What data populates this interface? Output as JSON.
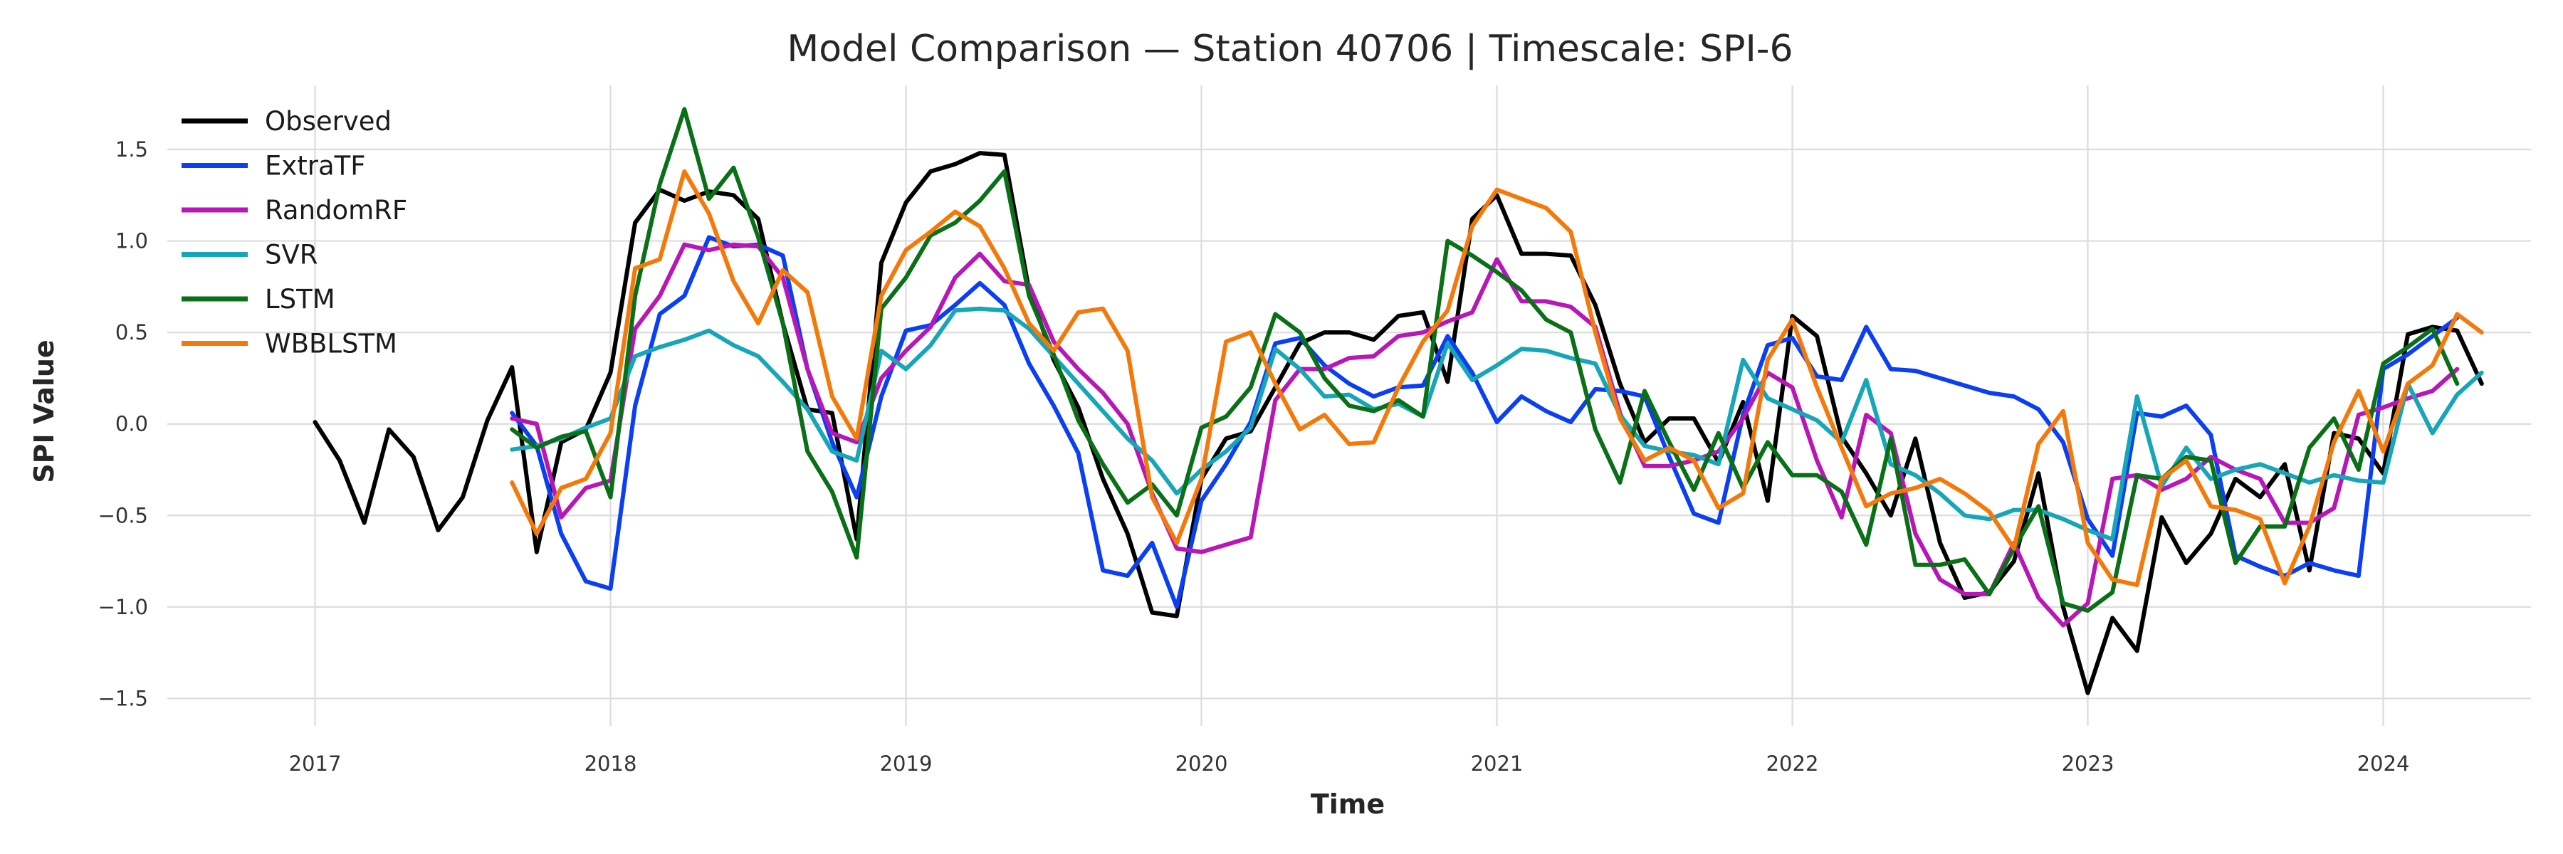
{
  "chart_data": {
    "type": "line",
    "title": "Model Comparison — Station 40706 | Timescale: SPI-6",
    "xlabel": "Time",
    "ylabel": "SPI Value",
    "x_start": "2017-01",
    "xlim": [
      "2016-07",
      "2024-07"
    ],
    "ylim": [
      -1.65,
      1.85
    ],
    "x_ticks": [
      "2017",
      "2018",
      "2019",
      "2020",
      "2021",
      "2022",
      "2023",
      "2024"
    ],
    "y_ticks": [
      -1.5,
      -1.0,
      -0.5,
      0.0,
      0.5,
      1.0,
      1.5
    ],
    "y_tick_labels": [
      "−1.5",
      "−1.0",
      "−0.5",
      "0.0",
      "0.5",
      "1.0",
      "1.5"
    ],
    "grid": true,
    "legend_position": "top-left",
    "series": [
      {
        "name": "Observed",
        "color": "#000000",
        "start": "2017-01",
        "values": [
          0.01,
          -0.2,
          -0.54,
          -0.03,
          -0.18,
          -0.58,
          -0.4,
          0.02,
          0.31,
          -0.7,
          -0.1,
          -0.03,
          0.28,
          1.1,
          1.28,
          1.22,
          1.27,
          1.25,
          1.12,
          0.55,
          0.08,
          0.06,
          -0.63,
          0.88,
          1.21,
          1.38,
          1.42,
          1.48,
          1.47,
          0.73,
          0.35,
          0.09,
          -0.3,
          -0.6,
          -1.03,
          -1.05,
          -0.3,
          -0.08,
          -0.04,
          0.2,
          0.44,
          0.5,
          0.5,
          0.46,
          0.59,
          0.61,
          0.23,
          1.12,
          1.25,
          0.93,
          0.93,
          0.92,
          0.65,
          0.22,
          -0.1,
          0.03,
          0.03,
          -0.21,
          0.12,
          -0.42,
          0.59,
          0.48,
          -0.07,
          -0.27,
          -0.5,
          -0.08,
          -0.65,
          -0.95,
          -0.92,
          -0.75,
          -0.27,
          -1.0,
          -1.47,
          -1.06,
          -1.24,
          -0.51,
          -0.76,
          -0.6,
          -0.3,
          -0.4,
          -0.22,
          -0.8,
          -0.05,
          -0.08,
          -0.27,
          0.49,
          0.53,
          0.51,
          0.22
        ]
      },
      {
        "name": "ExtraTF",
        "color": "#0a3ff2",
        "start": "2017-09",
        "values": [
          0.06,
          -0.12,
          -0.6,
          -0.86,
          -0.9,
          0.1,
          0.6,
          0.7,
          1.02,
          0.97,
          0.98,
          0.92,
          0.3,
          -0.1,
          -0.4,
          0.15,
          0.51,
          0.54,
          0.65,
          0.77,
          0.65,
          0.33,
          0.1,
          -0.16,
          -0.8,
          -0.83,
          -0.65,
          -1.0,
          -0.42,
          -0.22,
          0.01,
          0.44,
          0.47,
          0.32,
          0.22,
          0.15,
          0.2,
          0.21,
          0.48,
          0.28,
          0.01,
          0.15,
          0.07,
          0.01,
          0.19,
          0.18,
          0.15,
          -0.18,
          -0.49,
          -0.54,
          0.05,
          0.43,
          0.47,
          0.26,
          0.24,
          0.53,
          0.3,
          0.29,
          0.25,
          0.21,
          0.17,
          0.15,
          0.08,
          -0.1,
          -0.52,
          -0.72,
          0.06,
          0.04,
          0.1,
          -0.06,
          -0.72,
          -0.78,
          -0.83,
          -0.76,
          -0.8,
          -0.83,
          0.3,
          0.38,
          0.48,
          0.58
        ]
      },
      {
        "name": "RandomRF",
        "color": "#b817b8",
        "start": "2017-09",
        "values": [
          0.03,
          0.0,
          -0.51,
          -0.35,
          -0.31,
          0.52,
          0.7,
          0.98,
          0.95,
          0.98,
          0.97,
          0.8,
          0.3,
          -0.05,
          -0.1,
          0.25,
          0.4,
          0.53,
          0.8,
          0.93,
          0.78,
          0.76,
          0.45,
          0.3,
          0.17,
          0.0,
          -0.38,
          -0.68,
          -0.7,
          -0.66,
          -0.62,
          0.13,
          0.3,
          0.3,
          0.36,
          0.37,
          0.48,
          0.5,
          0.56,
          0.61,
          0.9,
          0.67,
          0.67,
          0.64,
          0.53,
          0.06,
          -0.23,
          -0.23,
          -0.2,
          -0.15,
          0.03,
          0.28,
          0.2,
          -0.2,
          -0.51,
          0.05,
          -0.05,
          -0.6,
          -0.85,
          -0.93,
          -0.93,
          -0.65,
          -0.95,
          -1.1,
          -0.98,
          -0.3,
          -0.28,
          -0.36,
          -0.3,
          -0.18,
          -0.25,
          -0.3,
          -0.54,
          -0.54,
          -0.46,
          0.05,
          0.09,
          0.14,
          0.18,
          0.3
        ]
      },
      {
        "name": "SVR",
        "color": "#17a5b8",
        "start": "2017-09",
        "values": [
          -0.14,
          -0.12,
          -0.08,
          -0.02,
          0.03,
          0.37,
          0.42,
          0.46,
          0.51,
          0.43,
          0.37,
          0.23,
          0.08,
          -0.15,
          -0.2,
          0.4,
          0.3,
          0.43,
          0.62,
          0.63,
          0.62,
          0.52,
          0.37,
          0.22,
          0.07,
          -0.08,
          -0.2,
          -0.38,
          -0.25,
          -0.15,
          -0.02,
          0.41,
          0.3,
          0.15,
          0.16,
          0.08,
          0.11,
          0.04,
          0.44,
          0.24,
          0.32,
          0.41,
          0.4,
          0.36,
          0.33,
          0.05,
          -0.12,
          -0.15,
          -0.17,
          -0.22,
          0.35,
          0.14,
          0.08,
          0.02,
          -0.1,
          0.24,
          -0.22,
          -0.28,
          -0.38,
          -0.5,
          -0.52,
          -0.47,
          -0.47,
          -0.52,
          -0.58,
          -0.63,
          0.15,
          -0.34,
          -0.13,
          -0.3,
          -0.25,
          -0.22,
          -0.27,
          -0.32,
          -0.28,
          -0.31,
          -0.32,
          0.22,
          -0.05,
          0.16,
          0.28
        ]
      },
      {
        "name": "LSTM",
        "color": "#0a7017",
        "start": "2017-09",
        "values": [
          -0.03,
          -0.13,
          -0.07,
          -0.04,
          -0.4,
          0.7,
          1.31,
          1.72,
          1.23,
          1.4,
          1.02,
          0.55,
          -0.15,
          -0.37,
          -0.73,
          0.63,
          0.8,
          1.03,
          1.1,
          1.22,
          1.38,
          0.7,
          0.38,
          0.02,
          -0.22,
          -0.43,
          -0.33,
          -0.5,
          -0.02,
          0.04,
          0.2,
          0.6,
          0.5,
          0.25,
          0.1,
          0.07,
          0.13,
          0.04,
          1.0,
          0.92,
          0.83,
          0.73,
          0.57,
          0.5,
          -0.03,
          -0.32,
          0.18,
          -0.1,
          -0.36,
          -0.05,
          -0.35,
          -0.1,
          -0.28,
          -0.28,
          -0.37,
          -0.66,
          -0.08,
          -0.77,
          -0.77,
          -0.74,
          -0.93,
          -0.68,
          -0.45,
          -0.98,
          -1.02,
          -0.92,
          -0.28,
          -0.3,
          -0.18,
          -0.2,
          -0.76,
          -0.56,
          -0.56,
          -0.13,
          0.03,
          -0.25,
          0.33,
          0.42,
          0.52,
          0.22
        ]
      },
      {
        "name": "WBBLSTM",
        "color": "#f37a0a",
        "start": "2017-09",
        "values": [
          -0.32,
          -0.6,
          -0.35,
          -0.3,
          -0.05,
          0.85,
          0.9,
          1.38,
          1.15,
          0.78,
          0.55,
          0.84,
          0.72,
          0.15,
          -0.08,
          0.7,
          0.95,
          1.05,
          1.16,
          1.08,
          0.85,
          0.55,
          0.4,
          0.61,
          0.63,
          0.4,
          -0.4,
          -0.65,
          -0.3,
          0.45,
          0.5,
          0.22,
          -0.03,
          0.05,
          -0.11,
          -0.1,
          0.2,
          0.45,
          0.62,
          1.08,
          1.28,
          1.23,
          1.18,
          1.05,
          0.5,
          0.03,
          -0.2,
          -0.13,
          -0.2,
          -0.46,
          -0.38,
          0.35,
          0.57,
          0.2,
          -0.13,
          -0.45,
          -0.38,
          -0.35,
          -0.3,
          -0.38,
          -0.48,
          -0.68,
          -0.11,
          0.07,
          -0.65,
          -0.85,
          -0.88,
          -0.3,
          -0.2,
          -0.45,
          -0.47,
          -0.52,
          -0.87,
          -0.56,
          -0.1,
          0.18,
          -0.15,
          0.22,
          0.32,
          0.6,
          0.5
        ]
      }
    ]
  }
}
